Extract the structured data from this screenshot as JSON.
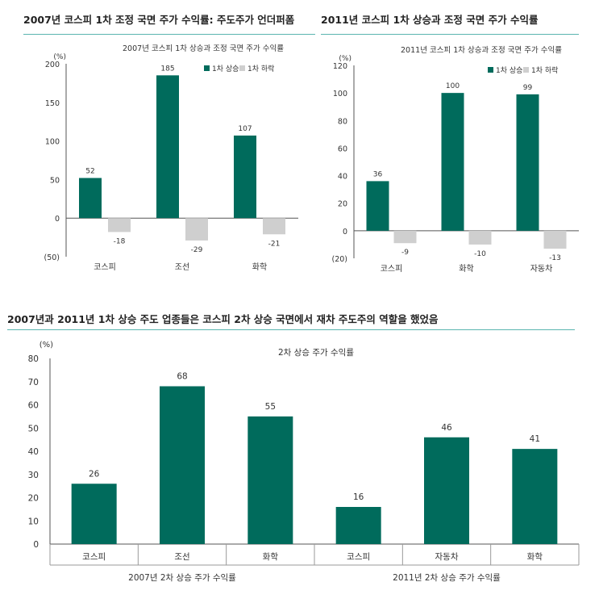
{
  "panels": {
    "top_left_title": "2007년 코스피 1차 조정 국면 주가 수익률: 주도주가 언더퍼폼",
    "top_right_title": "2011년 코스피 1차 상승과 조정 국면 주가 수익률",
    "bottom_title": "2007년과 2011년 1차 상승 주도 업종들은 코스피 2차 상승 국면에서 재차 주도주의 역할을 했었음"
  },
  "colors": {
    "up": "#006b5c",
    "down": "#cfcfcf",
    "axis": "#555555",
    "rule": "#5bb5b0"
  },
  "chart_data": [
    {
      "type": "bar",
      "title": "2007년 코스피 1차 상승과 조정 국면 주가 수익률",
      "unit": "(%)",
      "categories": [
        "코스피",
        "조선",
        "화학"
      ],
      "series": [
        {
          "name": "1차 상승",
          "values": [
            52,
            185,
            107
          ],
          "labels": [
            "52",
            "185",
            "107"
          ]
        },
        {
          "name": "1차 하락",
          "values": [
            -18,
            -29,
            -21
          ],
          "labels": [
            "-18",
            "-29",
            "-21"
          ]
        }
      ],
      "ylim": [
        -50,
        200
      ],
      "yticks": [
        -50,
        0,
        50,
        100,
        150,
        200
      ],
      "yticklabels": [
        "(50)",
        "0",
        "50",
        "100",
        "150",
        "200"
      ],
      "legend": "top-right"
    },
    {
      "type": "bar",
      "title": "2011년 코스피 1차 상승과 조정 국면 주가 수익률",
      "unit": "(%)",
      "categories": [
        "코스피",
        "화학",
        "자동차"
      ],
      "series": [
        {
          "name": "1차 상승",
          "values": [
            36,
            100,
            99
          ],
          "labels": [
            "36",
            "100",
            "99"
          ]
        },
        {
          "name": "1차 하락",
          "values": [
            -9,
            -10,
            -13
          ],
          "labels": [
            "-9",
            "-10",
            "-13"
          ]
        }
      ],
      "ylim": [
        -20,
        120
      ],
      "yticks": [
        -20,
        0,
        20,
        40,
        60,
        80,
        100,
        120
      ],
      "yticklabels": [
        "(20)",
        "0",
        "20",
        "40",
        "60",
        "80",
        "100",
        "120"
      ],
      "legend": "top-right"
    },
    {
      "type": "bar",
      "title": "2차 상승 주가 수익률",
      "unit": "(%)",
      "categories": [
        "코스피",
        "조선",
        "화학",
        "코스피",
        "자동차",
        "화학"
      ],
      "values": [
        26,
        68,
        55,
        16,
        46,
        41
      ],
      "labels": [
        "26",
        "68",
        "55",
        "16",
        "46",
        "41"
      ],
      "groups": [
        {
          "label": "2007년 2차 상승 주가 수익률",
          "count": 3
        },
        {
          "label": "2011년 2차 상승 주가 수익률",
          "count": 3
        }
      ],
      "ylim": [
        0,
        80
      ],
      "yticks": [
        0,
        10,
        20,
        30,
        40,
        50,
        60,
        70,
        80
      ],
      "yticklabels": [
        "0",
        "10",
        "20",
        "30",
        "40",
        "50",
        "60",
        "70",
        "80"
      ]
    }
  ]
}
